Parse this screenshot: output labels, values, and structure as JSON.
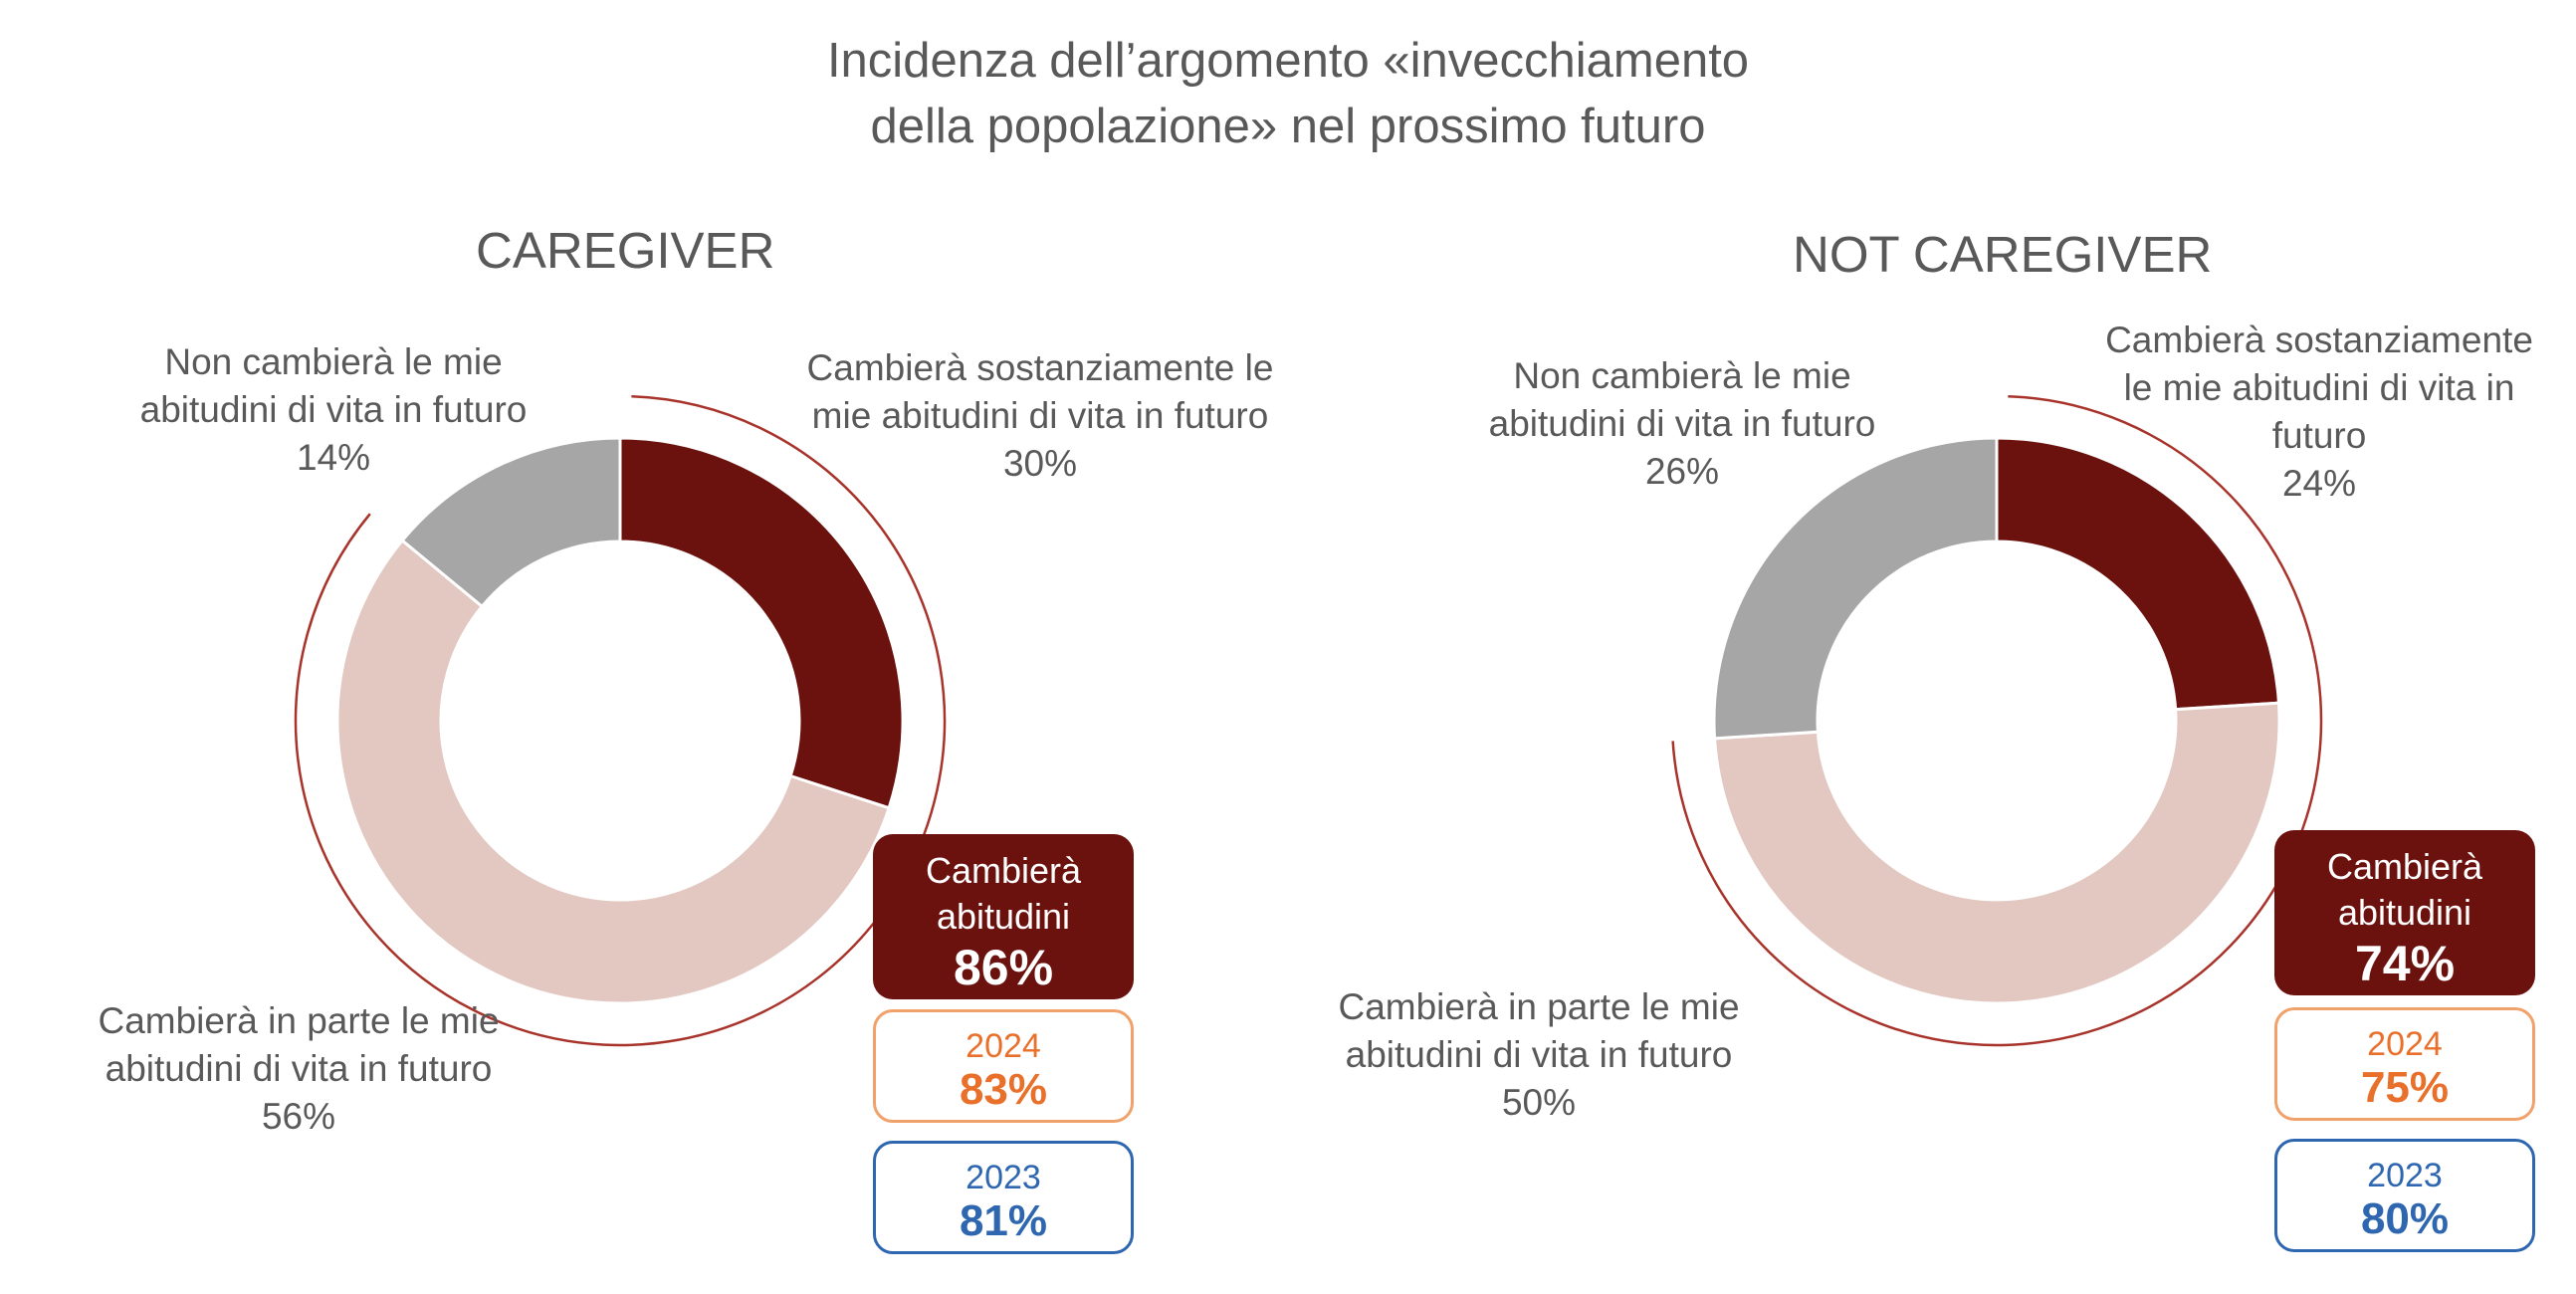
{
  "title": {
    "line1": "Incidenza dell’argomento «invecchiamento",
    "line2": "della popolazione» nel prossimo futuro"
  },
  "colors": {
    "sostanziale": "#6b120e",
    "in_parte": "#e2c8c1",
    "non_cambiera": "#a6a6a6",
    "bracket": "#a8332a",
    "year_2024": "#e8702a",
    "year_2023": "#2e66b0"
  },
  "chart_data": [
    {
      "type": "pie",
      "variant": "donut",
      "title": "CAREGIVER",
      "slices": [
        {
          "line1": "Cambierà sostanziamente le",
          "line2": "mie abitudini di vita in futuro",
          "value": 30,
          "pct": "30%"
        },
        {
          "line1": "Cambierà in parte le mie",
          "line2": "abitudini di vita in futuro",
          "value": 56,
          "pct": "56%"
        },
        {
          "line1": "Non cambierà le mie",
          "line2": "abitudini di vita in futuro",
          "value": 14,
          "pct": "14%"
        }
      ],
      "summary": {
        "label_line1": "Cambierà",
        "label_line2": "abitudini",
        "value": "86%",
        "previous": [
          {
            "year": "2024",
            "value": "83%"
          },
          {
            "year": "2023",
            "value": "81%"
          }
        ]
      }
    },
    {
      "type": "pie",
      "variant": "donut",
      "title": "NOT CAREGIVER",
      "slices": [
        {
          "line1": "Cambierà sostanziamente",
          "line2": "le mie abitudini di vita in",
          "line3": "futuro",
          "value": 24,
          "pct": "24%"
        },
        {
          "line1": "Cambierà in parte le mie",
          "line2": "abitudini di vita in futuro",
          "value": 50,
          "pct": "50%"
        },
        {
          "line1": "Non cambierà le mie",
          "line2": "abitudini di vita in futuro",
          "value": 26,
          "pct": "26%"
        }
      ],
      "summary": {
        "label_line1": "Cambierà",
        "label_line2": "abitudini",
        "value": "74%",
        "previous": [
          {
            "year": "2024",
            "value": "75%"
          },
          {
            "year": "2023",
            "value": "80%"
          }
        ]
      }
    }
  ]
}
